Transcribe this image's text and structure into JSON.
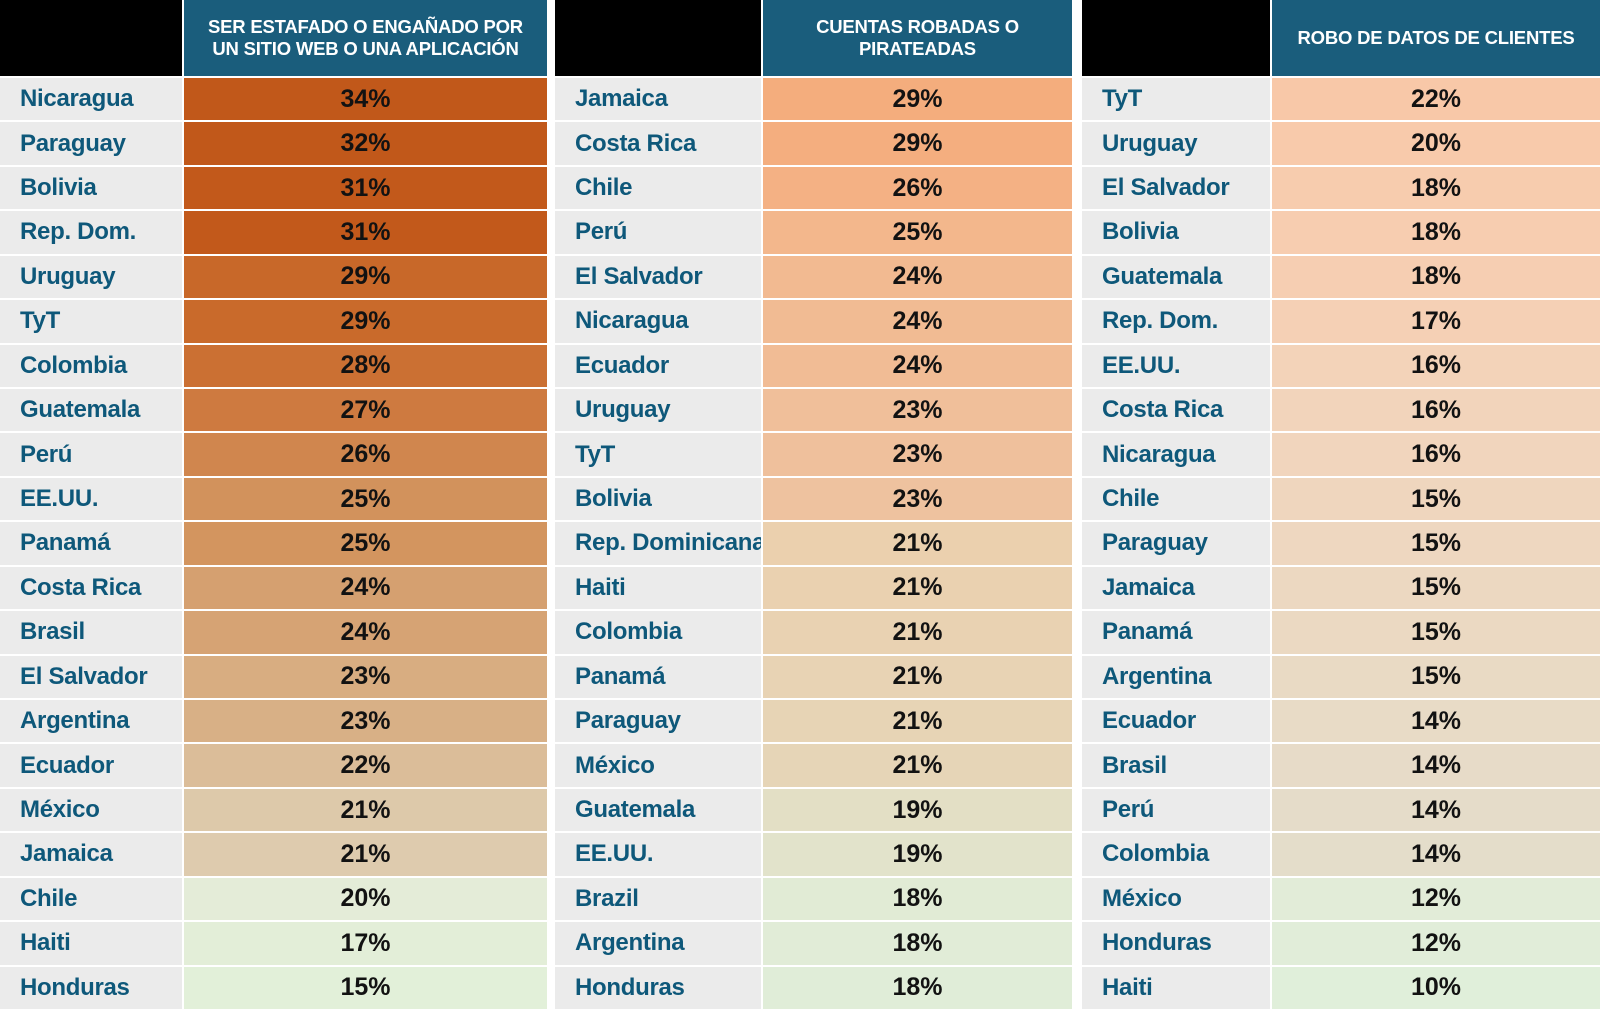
{
  "colors": {
    "header_bg": "#1a5d7c",
    "header_text": "#ffffff",
    "corner_bg": "#000000",
    "label_bg": "#ebebeb",
    "label_text": "#0e587a",
    "value_text": "#121212",
    "grid_gap": "#ffffff",
    "scale_high_col1": "#c1581a",
    "scale_high_col2": "#f4ad7d",
    "scale_high_col3": "#f8c8a8",
    "scale_mid": "#e8d3b4",
    "scale_low": "#e2f0d9"
  },
  "chart_data": {
    "type": "heatmap",
    "title": "",
    "value_unit": "%",
    "legend_position": "none",
    "series": [
      {
        "header": "SER ESTAFADO O ENGAÑADO POR\nUN SITIO WEB O UNA APLICACIÓN",
        "rows": [
          {
            "country": "Nicaragua",
            "value": 34,
            "color": "#c1581a"
          },
          {
            "country": "Paraguay",
            "value": 32,
            "color": "#c1581a"
          },
          {
            "country": "Bolivia",
            "value": 31,
            "color": "#c2591b"
          },
          {
            "country": "Rep. Dom.",
            "value": 31,
            "color": "#c2591b"
          },
          {
            "country": "Uruguay",
            "value": 29,
            "color": "#c86829"
          },
          {
            "country": "TyT",
            "value": 29,
            "color": "#c96a2b"
          },
          {
            "country": "Colombia",
            "value": 28,
            "color": "#cb7033"
          },
          {
            "country": "Guatemala",
            "value": 27,
            "color": "#ce7a40"
          },
          {
            "country": "Perú",
            "value": 26,
            "color": "#d0864e"
          },
          {
            "country": "EE.UU.",
            "value": 25,
            "color": "#d2925c"
          },
          {
            "country": "Panamá",
            "value": 25,
            "color": "#d3955f"
          },
          {
            "country": "Costa Rica",
            "value": 24,
            "color": "#d5a070"
          },
          {
            "country": "Brasil",
            "value": 24,
            "color": "#d6a374"
          },
          {
            "country": "El Salvador",
            "value": 23,
            "color": "#d8ad81"
          },
          {
            "country": "Argentina",
            "value": 23,
            "color": "#d8b086"
          },
          {
            "country": "Ecuador",
            "value": 22,
            "color": "#dbbd99"
          },
          {
            "country": "México",
            "value": 21,
            "color": "#ddc9aa"
          },
          {
            "country": "Jamaica",
            "value": 21,
            "color": "#decbae"
          },
          {
            "country": "Chile",
            "value": 20,
            "color": "#e4ecd8"
          },
          {
            "country": "Haiti",
            "value": 17,
            "color": "#e3eed8"
          },
          {
            "country": "Honduras",
            "value": 15,
            "color": "#e2f0d9"
          }
        ]
      },
      {
        "header": "CUENTAS ROBADAS O\nPIRATEADAS",
        "rows": [
          {
            "country": "Jamaica",
            "value": 29,
            "color": "#f4ad7d"
          },
          {
            "country": "Costa Rica",
            "value": 29,
            "color": "#f4ae7f"
          },
          {
            "country": "Chile",
            "value": 26,
            "color": "#f4b184"
          },
          {
            "country": "Perú",
            "value": 25,
            "color": "#f3b78c"
          },
          {
            "country": "El Salvador",
            "value": 24,
            "color": "#f2ba91"
          },
          {
            "country": "Nicaragua",
            "value": 24,
            "color": "#f1bb93"
          },
          {
            "country": "Ecuador",
            "value": 24,
            "color": "#f1bc95"
          },
          {
            "country": "Uruguay",
            "value": 23,
            "color": "#f0bf9a"
          },
          {
            "country": "TyT",
            "value": 23,
            "color": "#efc09c"
          },
          {
            "country": "Bolivia",
            "value": 23,
            "color": "#eec29f"
          },
          {
            "country": "Rep. Dominicana",
            "value": 21,
            "color": "#ebd0ae"
          },
          {
            "country": "Haiti",
            "value": 21,
            "color": "#ead1b0"
          },
          {
            "country": "Colombia",
            "value": 21,
            "color": "#e9d2b2"
          },
          {
            "country": "Panamá",
            "value": 21,
            "color": "#e8d3b4"
          },
          {
            "country": "Paraguay",
            "value": 21,
            "color": "#e7d4b5"
          },
          {
            "country": "México",
            "value": 21,
            "color": "#e6d5b7"
          },
          {
            "country": "Guatemala",
            "value": 19,
            "color": "#e3dfc5"
          },
          {
            "country": "EE.UU.",
            "value": 19,
            "color": "#e2e3cb"
          },
          {
            "country": "Brazil",
            "value": 18,
            "color": "#e1ebd5"
          },
          {
            "country": "Argentina",
            "value": 18,
            "color": "#e1ecd7"
          },
          {
            "country": "Honduras",
            "value": 18,
            "color": "#e0edd8"
          }
        ]
      },
      {
        "header": "ROBO DE DATOS DE CLIENTES",
        "rows": [
          {
            "country": "TyT",
            "value": 22,
            "color": "#f8c8a8"
          },
          {
            "country": "Uruguay",
            "value": 20,
            "color": "#f8caab"
          },
          {
            "country": "El Salvador",
            "value": 18,
            "color": "#f7ccae"
          },
          {
            "country": "Bolivia",
            "value": 18,
            "color": "#f7cdb0"
          },
          {
            "country": "Guatemala",
            "value": 18,
            "color": "#f6ceb2"
          },
          {
            "country": "Rep. Dom.",
            "value": 17,
            "color": "#f5d0b5"
          },
          {
            "country": "EE.UU.",
            "value": 16,
            "color": "#f3d3b9"
          },
          {
            "country": "Costa Rica",
            "value": 16,
            "color": "#f2d4bb"
          },
          {
            "country": "Nicaragua",
            "value": 16,
            "color": "#f1d5bd"
          },
          {
            "country": "Chile",
            "value": 15,
            "color": "#efd6be"
          },
          {
            "country": "Paraguay",
            "value": 15,
            "color": "#eed7c0"
          },
          {
            "country": "Jamaica",
            "value": 15,
            "color": "#ecd8c1"
          },
          {
            "country": "Panamá",
            "value": 15,
            "color": "#ebd9c2"
          },
          {
            "country": "Argentina",
            "value": 15,
            "color": "#e9dac4"
          },
          {
            "country": "Ecuador",
            "value": 14,
            "color": "#e8dbc6"
          },
          {
            "country": "Brasil",
            "value": 14,
            "color": "#e7dbc8"
          },
          {
            "country": "Perú",
            "value": 14,
            "color": "#e5dcc9"
          },
          {
            "country": "Colombia",
            "value": 14,
            "color": "#e4ddca"
          },
          {
            "country": "México",
            "value": 12,
            "color": "#e2ecd8"
          },
          {
            "country": "Honduras",
            "value": 12,
            "color": "#e1edd9"
          },
          {
            "country": "Haiti",
            "value": 10,
            "color": "#e0efda"
          }
        ]
      }
    ]
  }
}
